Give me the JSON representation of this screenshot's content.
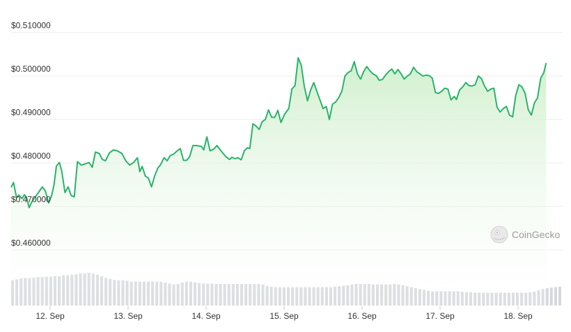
{
  "watermark": {
    "label": "CoinGecko",
    "icon": "coingecko-logo-icon"
  },
  "chart_data": {
    "type": "area",
    "title": "",
    "xlabel": "",
    "ylabel": "",
    "ylim": [
      0.456,
      0.513
    ],
    "y_ticks": [
      0.46,
      0.47,
      0.48,
      0.49,
      0.5,
      0.51
    ],
    "y_tick_labels": [
      "$0.460000",
      "$0.470000",
      "$0.480000",
      "$0.490000",
      "$0.500000",
      "$0.510000"
    ],
    "x_ticks": [
      {
        "day": 0.5,
        "label": "12. Sep"
      },
      {
        "day": 1.5,
        "label": "13. Sep"
      },
      {
        "day": 2.5,
        "label": "14. Sep"
      },
      {
        "day": 3.5,
        "label": "15. Sep"
      },
      {
        "day": 4.5,
        "label": "16. Sep"
      },
      {
        "day": 5.5,
        "label": "17. Sep"
      },
      {
        "day": 6.5,
        "label": "18. Sep"
      }
    ],
    "grid": true,
    "colors": {
      "line": "#29b36a",
      "fill_top": "#cdeec9",
      "volume": "#d5d8dc"
    },
    "series": [
      {
        "values": [
          [
            0.0,
            0.4744
          ],
          [
            0.03,
            0.4755
          ],
          [
            0.07,
            0.472
          ],
          [
            0.1,
            0.4726
          ],
          [
            0.14,
            0.4718
          ],
          [
            0.17,
            0.4727
          ],
          [
            0.2,
            0.472
          ],
          [
            0.23,
            0.4697
          ],
          [
            0.27,
            0.4712
          ],
          [
            0.31,
            0.4722
          ],
          [
            0.35,
            0.4732
          ],
          [
            0.4,
            0.4745
          ],
          [
            0.44,
            0.4735
          ],
          [
            0.48,
            0.4708
          ],
          [
            0.52,
            0.4725
          ],
          [
            0.55,
            0.475
          ],
          [
            0.58,
            0.4793
          ],
          [
            0.62,
            0.4801
          ],
          [
            0.65,
            0.478
          ],
          [
            0.69,
            0.4732
          ],
          [
            0.73,
            0.4745
          ],
          [
            0.77,
            0.4725
          ],
          [
            0.81,
            0.4722
          ],
          [
            0.85,
            0.4803
          ],
          [
            0.9,
            0.4795
          ],
          [
            0.95,
            0.4798
          ],
          [
            1.0,
            0.4801
          ],
          [
            1.04,
            0.479
          ],
          [
            1.08,
            0.4825
          ],
          [
            1.13,
            0.4822
          ],
          [
            1.17,
            0.4808
          ],
          [
            1.21,
            0.4805
          ],
          [
            1.26,
            0.4823
          ],
          [
            1.31,
            0.483
          ],
          [
            1.36,
            0.4828
          ],
          [
            1.42,
            0.4822
          ],
          [
            1.47,
            0.4805
          ],
          [
            1.52,
            0.4795
          ],
          [
            1.57,
            0.4801
          ],
          [
            1.62,
            0.4812
          ],
          [
            1.65,
            0.478
          ],
          [
            1.68,
            0.4792
          ],
          [
            1.72,
            0.477
          ],
          [
            1.76,
            0.4765
          ],
          [
            1.8,
            0.4745
          ],
          [
            1.84,
            0.477
          ],
          [
            1.88,
            0.4788
          ],
          [
            1.92,
            0.4797
          ],
          [
            1.96,
            0.4812
          ],
          [
            2.0,
            0.4805
          ],
          [
            2.04,
            0.4817
          ],
          [
            2.08,
            0.482
          ],
          [
            2.13,
            0.4828
          ],
          [
            2.17,
            0.4833
          ],
          [
            2.21,
            0.4806
          ],
          [
            2.25,
            0.4806
          ],
          [
            2.29,
            0.4815
          ],
          [
            2.33,
            0.484
          ],
          [
            2.38,
            0.484
          ],
          [
            2.44,
            0.4838
          ],
          [
            2.47,
            0.483
          ],
          [
            2.51,
            0.486
          ],
          [
            2.55,
            0.4828
          ],
          [
            2.6,
            0.4832
          ],
          [
            2.64,
            0.484
          ],
          [
            2.69,
            0.4828
          ],
          [
            2.75,
            0.4815
          ],
          [
            2.8,
            0.4808
          ],
          [
            2.83,
            0.4813
          ],
          [
            2.87,
            0.481
          ],
          [
            2.91,
            0.4812
          ],
          [
            2.95,
            0.4807
          ],
          [
            2.99,
            0.4828
          ],
          [
            3.03,
            0.4835
          ],
          [
            3.06,
            0.4833
          ],
          [
            3.1,
            0.489
          ],
          [
            3.14,
            0.4885
          ],
          [
            3.18,
            0.4877
          ],
          [
            3.22,
            0.4895
          ],
          [
            3.26,
            0.49
          ],
          [
            3.3,
            0.4922
          ],
          [
            3.34,
            0.4905
          ],
          [
            3.38,
            0.4905
          ],
          [
            3.42,
            0.4921
          ],
          [
            3.46,
            0.4893
          ],
          [
            3.51,
            0.4913
          ],
          [
            3.56,
            0.4925
          ],
          [
            3.6,
            0.497
          ],
          [
            3.64,
            0.4978
          ],
          [
            3.68,
            0.5042
          ],
          [
            3.72,
            0.5025
          ],
          [
            3.76,
            0.4975
          ],
          [
            3.8,
            0.4943
          ],
          [
            3.84,
            0.4968
          ],
          [
            3.88,
            0.4985
          ],
          [
            3.92,
            0.4965
          ],
          [
            3.96,
            0.4945
          ],
          [
            4.0,
            0.4925
          ],
          [
            4.04,
            0.493
          ],
          [
            4.08,
            0.49
          ],
          [
            4.12,
            0.4935
          ],
          [
            4.16,
            0.494
          ],
          [
            4.2,
            0.495
          ],
          [
            4.24,
            0.4965
          ],
          [
            4.28,
            0.5
          ],
          [
            4.32,
            0.5008
          ],
          [
            4.36,
            0.5012
          ],
          [
            4.4,
            0.5033
          ],
          [
            4.44,
            0.5005
          ],
          [
            4.48,
            0.4993
          ],
          [
            4.52,
            0.501
          ],
          [
            4.56,
            0.5022
          ],
          [
            4.6,
            0.5012
          ],
          [
            4.64,
            0.5005
          ],
          [
            4.68,
            0.5001
          ],
          [
            4.72,
            0.499
          ],
          [
            4.76,
            0.4992
          ],
          [
            4.8,
            0.5002
          ],
          [
            4.84,
            0.501
          ],
          [
            4.88,
            0.5016
          ],
          [
            4.92,
            0.5005
          ],
          [
            4.96,
            0.5015
          ],
          [
            5.0,
            0.5005
          ],
          [
            5.04,
            0.4993
          ],
          [
            5.08,
            0.5
          ],
          [
            5.12,
            0.5005
          ],
          [
            5.16,
            0.502
          ],
          [
            5.2,
            0.501
          ],
          [
            5.24,
            0.5005
          ],
          [
            5.28,
            0.5
          ],
          [
            5.32,
            0.5002
          ],
          [
            5.36,
            0.5001
          ],
          [
            5.4,
            0.4995
          ],
          [
            5.44,
            0.4962
          ],
          [
            5.48,
            0.496
          ],
          [
            5.52,
            0.4965
          ],
          [
            5.56,
            0.4972
          ],
          [
            5.6,
            0.497
          ],
          [
            5.64,
            0.4945
          ],
          [
            5.68,
            0.4953
          ],
          [
            5.71,
            0.4946
          ],
          [
            5.75,
            0.4968
          ],
          [
            5.79,
            0.4975
          ],
          [
            5.83,
            0.4985
          ],
          [
            5.87,
            0.4978
          ],
          [
            5.91,
            0.4977
          ],
          [
            5.95,
            0.498
          ],
          [
            5.99,
            0.5
          ],
          [
            6.03,
            0.4994
          ],
          [
            6.07,
            0.4977
          ],
          [
            6.11,
            0.4965
          ],
          [
            6.15,
            0.497
          ],
          [
            6.19,
            0.4972
          ],
          [
            6.23,
            0.4928
          ],
          [
            6.27,
            0.4917
          ],
          [
            6.31,
            0.4925
          ],
          [
            6.35,
            0.493
          ],
          [
            6.39,
            0.491
          ],
          [
            6.43,
            0.4906
          ],
          [
            6.47,
            0.4955
          ],
          [
            6.51,
            0.498
          ],
          [
            6.55,
            0.4975
          ],
          [
            6.59,
            0.496
          ],
          [
            6.63,
            0.4923
          ],
          [
            6.67,
            0.491
          ],
          [
            6.71,
            0.4938
          ],
          [
            6.75,
            0.495
          ],
          [
            6.79,
            0.4995
          ],
          [
            6.83,
            0.5008
          ],
          [
            6.86,
            0.503
          ]
        ]
      }
    ],
    "volume": [
      0.55,
      0.57,
      0.59,
      0.6,
      0.6,
      0.61,
      0.62,
      0.62,
      0.63,
      0.63,
      0.64,
      0.64,
      0.66,
      0.66,
      0.67,
      0.68,
      0.7,
      0.7,
      0.71,
      0.7,
      0.67,
      0.64,
      0.6,
      0.58,
      0.56,
      0.55,
      0.55,
      0.54,
      0.52,
      0.52,
      0.52,
      0.52,
      0.52,
      0.52,
      0.52,
      0.52,
      0.5,
      0.48,
      0.46,
      0.47,
      0.5,
      0.52,
      0.52,
      0.5,
      0.49,
      0.48,
      0.48,
      0.48,
      0.47,
      0.47,
      0.47,
      0.47,
      0.47,
      0.47,
      0.47,
      0.47,
      0.47,
      0.47,
      0.47,
      0.46,
      0.43,
      0.41,
      0.4,
      0.4,
      0.4,
      0.4,
      0.4,
      0.4,
      0.4,
      0.4,
      0.4,
      0.4,
      0.4,
      0.4,
      0.4,
      0.4,
      0.41,
      0.42,
      0.43,
      0.44,
      0.46,
      0.47,
      0.47,
      0.47,
      0.47,
      0.46,
      0.46,
      0.46,
      0.46,
      0.46,
      0.47,
      0.46,
      0.44,
      0.42,
      0.4,
      0.38,
      0.36,
      0.34,
      0.32,
      0.31,
      0.31,
      0.31,
      0.31,
      0.31,
      0.31,
      0.31,
      0.3,
      0.29,
      0.29,
      0.28,
      0.28,
      0.28,
      0.28,
      0.28,
      0.28,
      0.28,
      0.28,
      0.28,
      0.28,
      0.28,
      0.28,
      0.28,
      0.29,
      0.3,
      0.33,
      0.36,
      0.38,
      0.39,
      0.4,
      0.41
    ]
  }
}
